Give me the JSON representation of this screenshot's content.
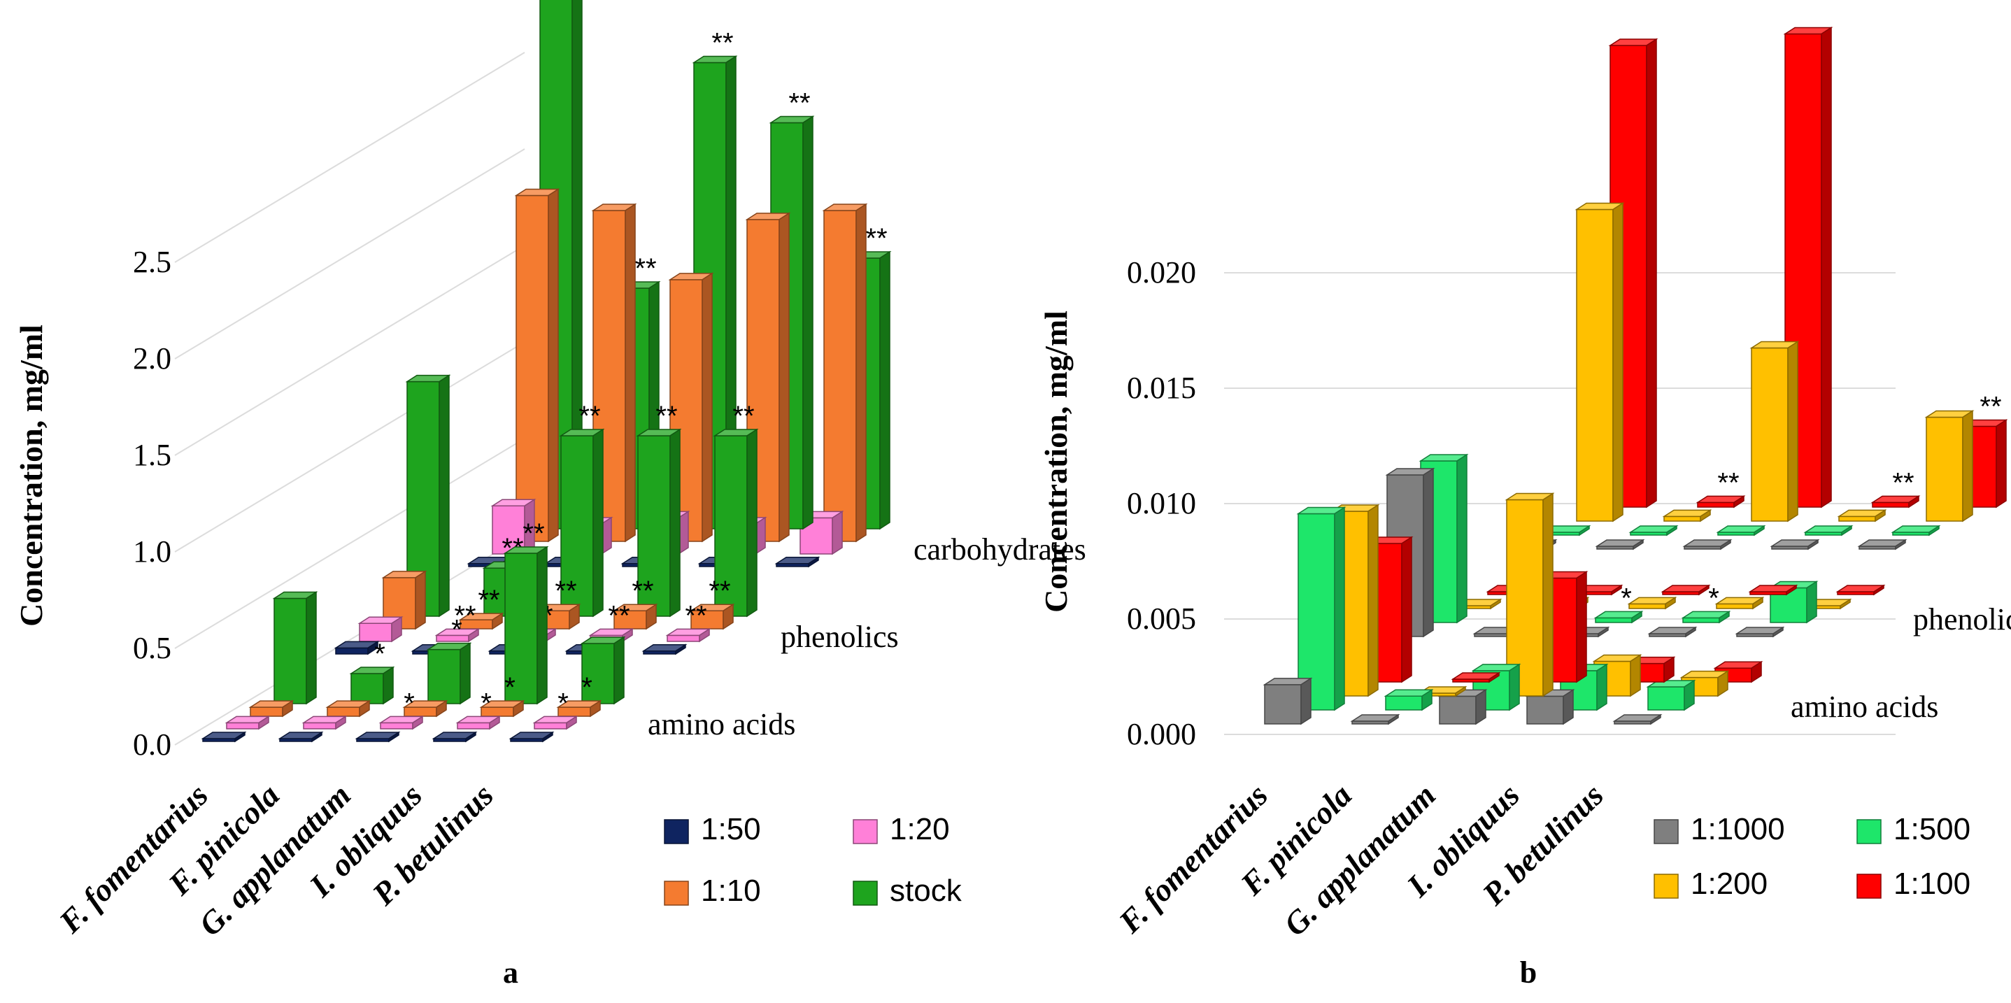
{
  "chart_data": [
    {
      "type": "bar",
      "panel_label": "a",
      "ylabel": "Concentration, mg/ml",
      "ylim": [
        0,
        2.5
      ],
      "yticks": [
        "0.0",
        "0.5",
        "1.0",
        "1.5",
        "2.0",
        "2.5"
      ],
      "categories": [
        "F. fomentarius",
        "F. pinicola",
        "G. applanatum",
        "I. obliquus",
        "P. betulinus"
      ],
      "series_legend": [
        {
          "name": "1:50",
          "color": "#0f2460"
        },
        {
          "name": "1:20",
          "color": "#ff80d8"
        },
        {
          "name": "1:10",
          "color": "#f47b30"
        },
        {
          "name": "stock",
          "color": "#1ea41e"
        }
      ],
      "rows": [
        {
          "label": "amino acids",
          "series": [
            {
              "name": "1:50",
              "values": [
                0.0,
                0.0,
                0.0,
                0.0,
                0.0
              ],
              "sig": [
                "",
                "",
                "",
                "",
                ""
              ]
            },
            {
              "name": "1:20",
              "values": [
                0.02,
                0.02,
                0.02,
                0.02,
                0.02
              ],
              "sig": [
                "",
                "",
                "*",
                "*",
                "*"
              ]
            },
            {
              "name": "1:10",
              "values": [
                0.03,
                0.03,
                0.03,
                0.03,
                0.03
              ],
              "sig": [
                "",
                "",
                "",
                "*",
                "*"
              ]
            },
            {
              "name": "stock",
              "values": [
                0.35,
                0.1,
                0.18,
                0.5,
                0.2
              ],
              "sig": [
                "",
                "*",
                "*",
                "**",
                ""
              ]
            }
          ]
        },
        {
          "label": "phenolics",
          "series": [
            {
              "name": "1:50",
              "values": [
                0.02,
                0.01,
                0.01,
                0.01,
                0.01
              ],
              "sig": [
                "",
                "",
                "",
                "",
                ""
              ]
            },
            {
              "name": "1:20",
              "values": [
                0.06,
                0.02,
                0.02,
                0.02,
                0.02
              ],
              "sig": [
                "",
                "**",
                "**",
                "**",
                "**"
              ]
            },
            {
              "name": "1:10",
              "values": [
                0.17,
                0.03,
                0.06,
                0.06,
                0.06
              ],
              "sig": [
                "",
                "**",
                "**",
                "**",
                "**"
              ]
            },
            {
              "name": "stock",
              "values": [
                0.78,
                0.16,
                0.6,
                0.6,
                0.6
              ],
              "sig": [
                "",
                "**",
                "**",
                "**",
                "**"
              ]
            }
          ]
        },
        {
          "label": "carbohydrates",
          "series": [
            {
              "name": "1:50",
              "values": [
                0.01,
                0.01,
                0.01,
                0.01,
                0.01
              ],
              "sig": [
                "",
                "",
                "",
                "",
                ""
              ]
            },
            {
              "name": "1:20",
              "values": [
                0.16,
                0.1,
                0.12,
                0.1,
                0.12
              ],
              "sig": [
                "",
                "",
                "",
                "",
                ""
              ]
            },
            {
              "name": "1:10",
              "values": [
                1.15,
                1.1,
                0.87,
                1.07,
                1.1
              ],
              "sig": [
                "",
                "",
                "",
                "",
                ""
              ]
            },
            {
              "name": "stock",
              "values": [
                2.6,
                0.8,
                1.55,
                1.35,
                0.9
              ],
              "sig": [
                "",
                "**",
                "**",
                "**",
                "**"
              ]
            }
          ]
        }
      ]
    },
    {
      "type": "bar",
      "panel_label": "b",
      "ylabel": "Concentration, mg/ml",
      "ylim": [
        0,
        0.02
      ],
      "yticks": [
        "0.000",
        "0.005",
        "0.010",
        "0.015",
        "0.020"
      ],
      "categories": [
        "F. fomentarius",
        "F. pinicola",
        "G. applanatum",
        "I. obliquus",
        "P. betulinus"
      ],
      "series_legend": [
        {
          "name": "1:1000",
          "color": "#7f7f7f"
        },
        {
          "name": "1:500",
          "color": "#1ee66a"
        },
        {
          "name": "1:200",
          "color": "#ffc000"
        },
        {
          "name": "1:100",
          "color": "#ff0000"
        }
      ],
      "rows": [
        {
          "label": "amino acids",
          "series": [
            {
              "name": "1:1000",
              "values": [
                0.0017,
                0.0,
                0.0012,
                0.0012,
                0.0
              ],
              "sig": [
                "",
                "",
                "",
                "",
                ""
              ]
            },
            {
              "name": "1:500",
              "values": [
                0.0085,
                0.0006,
                0.0017,
                0.0017,
                0.001
              ],
              "sig": [
                "",
                "",
                "",
                "",
                ""
              ]
            },
            {
              "name": "1:200",
              "values": [
                0.008,
                0.0,
                0.0085,
                0.0015,
                0.0008
              ],
              "sig": [
                "",
                "",
                "",
                "",
                ""
              ]
            },
            {
              "name": "1:100",
              "values": [
                0.006,
                0.0,
                0.0045,
                0.0008,
                0.0006
              ],
              "sig": [
                "",
                "",
                "",
                "",
                ""
              ]
            }
          ]
        },
        {
          "label": "phenolics",
          "series": [
            {
              "name": "1:1000",
              "values": [
                0.007,
                0.0,
                0.0,
                0.0,
                0.0
              ],
              "sig": [
                "",
                "",
                "",
                "",
                ""
              ]
            },
            {
              "name": "1:500",
              "values": [
                0.007,
                0.0002,
                0.0002,
                0.0002,
                0.0015
              ],
              "sig": [
                "",
                "*",
                "*",
                "*",
                ""
              ]
            },
            {
              "name": "1:200",
              "values": [
                0.0,
                0.0002,
                0.0002,
                0.0002,
                0.0
              ],
              "sig": [
                "",
                "",
                "",
                "",
                ""
              ]
            },
            {
              "name": "1:100",
              "values": [
                0.0,
                0.0,
                0.0,
                0.0,
                0.0
              ],
              "sig": [
                "",
                "",
                "",
                "",
                ""
              ]
            }
          ]
        },
        {
          "label": "",
          "series": [
            {
              "name": "1:1000",
              "values": [
                0.0,
                0.0,
                0.0,
                0.0,
                0.0
              ],
              "sig": [
                "",
                "",
                "",
                "",
                ""
              ]
            },
            {
              "name": "1:500",
              "values": [
                0.0,
                0.0,
                0.0,
                0.0,
                0.0
              ],
              "sig": [
                "",
                "",
                "",
                "",
                ""
              ]
            },
            {
              "name": "1:200",
              "values": [
                0.0135,
                0.0002,
                0.0075,
                0.0002,
                0.0045
              ],
              "sig": [
                "",
                "",
                "",
                "",
                ""
              ]
            },
            {
              "name": "1:100",
              "values": [
                0.02,
                0.0002,
                0.0205,
                0.0002,
                0.0035
              ],
              "sig": [
                "",
                "**",
                "",
                "**",
                "**"
              ]
            }
          ]
        }
      ]
    }
  ]
}
